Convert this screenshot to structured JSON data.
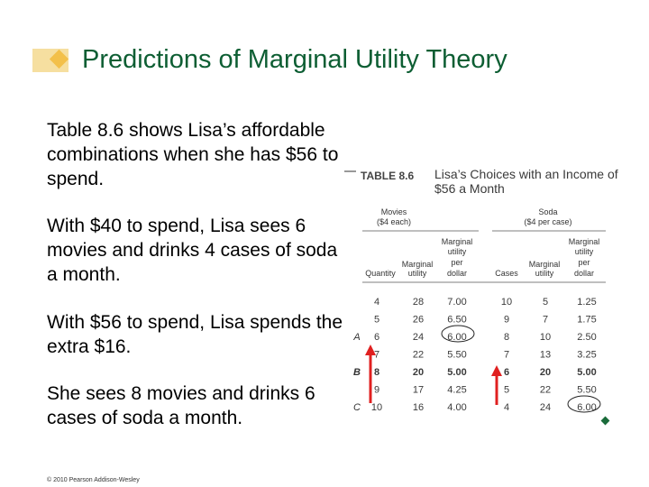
{
  "slide": {
    "title": "Predictions of Marginal Utility Theory",
    "paragraphs": [
      "Table 8.6 shows Lisa’s affordable combinations when she has $56 to spend.",
      "With $40 to spend, Lisa sees 6 movies and drinks 4 cases of soda a month.",
      "With $56 to spend, Lisa spends the extra $16.",
      "She sees 8 movies and drinks 6 cases of soda a month."
    ],
    "footer": "© 2010 Pearson Addison-Wesley"
  },
  "table": {
    "label": "TABLE 8.6",
    "caption_line1": "Lisa’s Choices with an Income of",
    "caption_line2": "$56 a Month",
    "movies_group": "Movies",
    "movies_price": "($4 each)",
    "soda_group": "Soda",
    "soda_price": "($4 per case)",
    "columns": [
      "Quantity",
      "Marginal utility",
      "Marginal utility per dollar",
      "Cases",
      "Marginal utility",
      "Marginal utility per dollar"
    ],
    "rows": [
      {
        "label": "",
        "cells": [
          "4",
          "28",
          "7.00",
          "10",
          "5",
          "1.25"
        ]
      },
      {
        "label": "",
        "cells": [
          "5",
          "26",
          "6.50",
          "9",
          "7",
          "1.75"
        ]
      },
      {
        "label": "A",
        "cells": [
          "6",
          "24",
          "6.00",
          "8",
          "10",
          "2.50"
        ]
      },
      {
        "label": "",
        "cells": [
          "7",
          "22",
          "5.50",
          "7",
          "13",
          "3.25"
        ]
      },
      {
        "label": "B",
        "cells": [
          "8",
          "20",
          "5.00",
          "6",
          "20",
          "5.00"
        ]
      },
      {
        "label": "",
        "cells": [
          "9",
          "17",
          "4.25",
          "5",
          "22",
          "5.50"
        ]
      },
      {
        "label": "C",
        "cells": [
          "10",
          "16",
          "4.00",
          "4",
          "24",
          "6.00"
        ]
      }
    ],
    "highlight_color": "#d6226f",
    "arrow_color": "#e02020"
  }
}
